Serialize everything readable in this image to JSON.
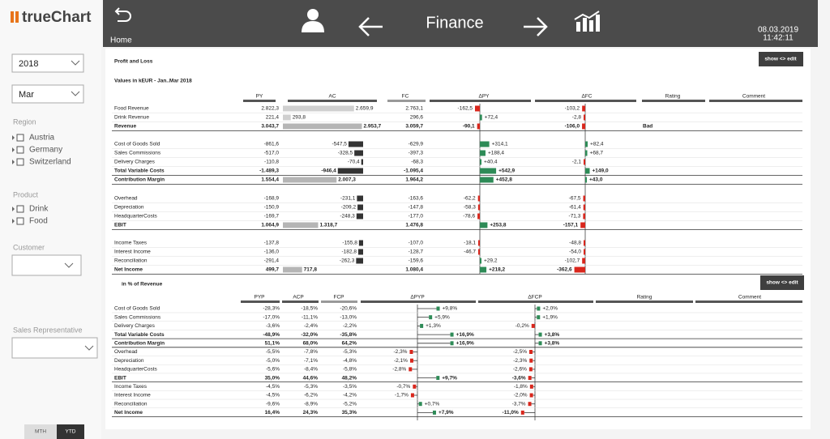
{
  "app": {
    "logo": "trueChart",
    "home": "Home",
    "title": "Finance",
    "date": "08.03.2019",
    "time": "11:42:11"
  },
  "sidebar": {
    "year": "2018",
    "month": "Mar",
    "region_title": "Region",
    "regions": [
      "Austria",
      "Germany",
      "Switzerland"
    ],
    "product_title": "Product",
    "products": [
      "Drink",
      "Food"
    ],
    "customer_title": "Customer",
    "sales_rep_title": "Sales Representative",
    "buttons": [
      "MTH",
      "YTD"
    ]
  },
  "pl": {
    "title": "Profit and Loss",
    "show_edit": "show <> edit",
    "subtitle": "Values in kEUR - Jan..Mar 2018",
    "columns": [
      "PY",
      "AC",
      "FC",
      "ΔPY",
      "ΔFC",
      "Rating",
      "Comment"
    ],
    "rows": [
      {
        "label": "Food Revenue",
        "py": "2.822,3",
        "ac": "2.659,9",
        "fc": "2.763,1",
        "dpy": "-162,5",
        "dfc": "-103,2"
      },
      {
        "label": "Drink Revenue",
        "py": "221,4",
        "ac": "293,8",
        "fc": "296,6",
        "dpy": "+72,4",
        "dfc": "-2,8"
      },
      {
        "label": "Revenue",
        "py": "3.043,7",
        "ac": "2.953,7",
        "fc": "3.059,7",
        "dpy": "-90,1",
        "dfc": "-106,0",
        "rating": "Bad"
      },
      {
        "label": "Cost of Goods Sold",
        "py": "-861,6",
        "ac": "-547,5",
        "fc": "-629,9",
        "dpy": "+314,1",
        "dfc": "+82,4"
      },
      {
        "label": "Sales Commissions",
        "py": "-517,0",
        "ac": "-328,5",
        "fc": "-397,3",
        "dpy": "+188,4",
        "dfc": "+68,7"
      },
      {
        "label": "Delivery Charges",
        "py": "-110,8",
        "ac": "-70,4",
        "fc": "-68,3",
        "dpy": "+40,4",
        "dfc": "-2,1"
      },
      {
        "label": "Total Variable Costs",
        "py": "-1.489,3",
        "ac": "-946,4",
        "fc": "-1.095,4",
        "dpy": "+542,9",
        "dfc": "+149,0"
      },
      {
        "label": "Contribution Margin",
        "py": "1.554,4",
        "ac": "2.007,3",
        "fc": "1.964,2",
        "dpy": "+452,8",
        "dfc": "+43,0"
      },
      {
        "label": "Overhead",
        "py": "-168,9",
        "ac": "-231,1",
        "fc": "-163,6",
        "dpy": "-62,2",
        "dfc": "-67,5"
      },
      {
        "label": "Depreciation",
        "py": "-150,9",
        "ac": "-209,2",
        "fc": "-147,8",
        "dpy": "-58,3",
        "dfc": "-61,4"
      },
      {
        "label": "HeadquarterCosts",
        "py": "-169,7",
        "ac": "-248,3",
        "fc": "-177,0",
        "dpy": "-78,6",
        "dfc": "-71,3"
      },
      {
        "label": "EBIT",
        "py": "1.064,9",
        "ac": "1.318,7",
        "fc": "1.476,8",
        "dpy": "+253,8",
        "dfc": "-157,1"
      },
      {
        "label": "Income Taxes",
        "py": "-137,8",
        "ac": "-155,8",
        "fc": "-107,0",
        "dpy": "-18,1",
        "dfc": "-48,8"
      },
      {
        "label": "Interest Income",
        "py": "-136,0",
        "ac": "-182,8",
        "fc": "-128,7",
        "dpy": "-46,7",
        "dfc": "-54,0"
      },
      {
        "label": "Reconciliation",
        "py": "-291,4",
        "ac": "-262,3",
        "fc": "-159,6",
        "dpy": "+29,2",
        "dfc": "-102,7"
      },
      {
        "label": "Net Income",
        "py": "499,7",
        "ac": "717,8",
        "fc": "1.080,4",
        "dpy": "+218,2",
        "dfc": "-362,6"
      }
    ]
  },
  "pct": {
    "title": "in % of Revenue",
    "show_edit": "show <> edit",
    "columns": [
      "PYP",
      "ACP",
      "FCP",
      "ΔPYP",
      "ΔFCP",
      "Rating",
      "Comment"
    ],
    "rows": [
      {
        "label": "Cost of Goods Sold",
        "pyp": "-28,3%",
        "acp": "-18,5%",
        "fcp": "-20,6%",
        "dpyp": "+9,8%",
        "dfcp": "+2,0%"
      },
      {
        "label": "Sales Commissions",
        "pyp": "-17,0%",
        "acp": "-11,1%",
        "fcp": "-13,0%",
        "dpyp": "+5,9%",
        "dfcp": "+1,9%"
      },
      {
        "label": "Delivery Charges",
        "pyp": "-3,6%",
        "acp": "-2,4%",
        "fcp": "-2,2%",
        "dpyp": "+1,3%",
        "dfcp": "-0,2%"
      },
      {
        "label": "Total Variable Costs",
        "pyp": "-48,9%",
        "acp": "-32,0%",
        "fcp": "-35,8%",
        "dpyp": "+16,9%",
        "dfcp": "+3,8%"
      },
      {
        "label": "Contribution Margin",
        "pyp": "51,1%",
        "acp": "68,0%",
        "fcp": "64,2%",
        "dpyp": "+16,9%",
        "dfcp": "+3,8%"
      },
      {
        "label": "Overhead",
        "pyp": "-5,5%",
        "acp": "-7,8%",
        "fcp": "-5,3%",
        "dpyp": "-2,3%",
        "dfcp": "-2,5%"
      },
      {
        "label": "Depreciation",
        "pyp": "-5,0%",
        "acp": "-7,1%",
        "fcp": "-4,8%",
        "dpyp": "-2,1%",
        "dfcp": "-2,3%"
      },
      {
        "label": "HeadquarterCosts",
        "pyp": "-5,6%",
        "acp": "-8,4%",
        "fcp": "-5,8%",
        "dpyp": "-2,8%",
        "dfcp": "-2,6%"
      },
      {
        "label": "EBIT",
        "pyp": "35,0%",
        "acp": "44,6%",
        "fcp": "48,2%",
        "dpyp": "+9,7%",
        "dfcp": "-3,6%"
      },
      {
        "label": "Income Taxes",
        "pyp": "-4,5%",
        "acp": "-5,3%",
        "fcp": "-3,5%",
        "dpyp": "-0,7%",
        "dfcp": "-1,8%"
      },
      {
        "label": "Interest Income",
        "pyp": "-4,5%",
        "acp": "-6,2%",
        "fcp": "-4,2%",
        "dpyp": "-1,7%",
        "dfcp": "-2,0%"
      },
      {
        "label": "Reconciliation",
        "pyp": "-9,6%",
        "acp": "-8,9%",
        "fcp": "-5,2%",
        "dpyp": "+0,7%",
        "dfcp": "-3,7%"
      },
      {
        "label": "Net Income",
        "pyp": "16,4%",
        "acp": "24,3%",
        "fcp": "35,3%",
        "dpyp": "+7,9%",
        "dfcp": "-11,0%"
      }
    ]
  }
}
